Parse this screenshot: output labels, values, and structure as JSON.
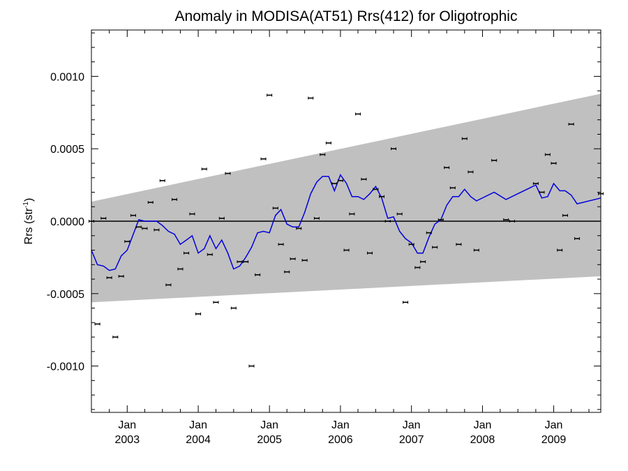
{
  "chart_data": {
    "type": "line",
    "title": "Anomaly in MODISA(AT51) Rrs(412) for Oligotrophic",
    "ylabel": "Rrs (str",
    "ylabel_superscript": "-1",
    "ylabel_suffix": ")",
    "xlabel": "",
    "xlim": [
      "2002-07-01",
      "2009-08-31"
    ],
    "ylim": [
      -0.00132,
      0.00132
    ],
    "y_ticks": [
      {
        "value": 0.001,
        "label": "0.0010"
      },
      {
        "value": 0.0005,
        "label": "0.0005"
      },
      {
        "value": 0.0,
        "label": "0.0000"
      },
      {
        "value": -0.0005,
        "label": "-0.0005"
      },
      {
        "value": -0.001,
        "label": "-0.0010"
      }
    ],
    "x_ticks": [
      {
        "date": "2003-01-01",
        "line1": "Jan",
        "line2": "2003"
      },
      {
        "date": "2004-01-01",
        "line1": "Jan",
        "line2": "2004"
      },
      {
        "date": "2005-01-01",
        "line1": "Jan",
        "line2": "2005"
      },
      {
        "date": "2006-01-01",
        "line1": "Jan",
        "line2": "2006"
      },
      {
        "date": "2007-01-01",
        "line1": "Jan",
        "line2": "2007"
      },
      {
        "date": "2008-01-01",
        "line1": "Jan",
        "line2": "2008"
      },
      {
        "date": "2009-01-01",
        "line1": "Jan",
        "line2": "2009"
      }
    ],
    "grid": false,
    "legend": "none",
    "colors": {
      "band": "#c0c0c0",
      "trend": "#0000dd",
      "points": "#000000",
      "zero_line": "#000000"
    },
    "band": {
      "upper": [
        [
          "2002-07-01",
          0.000135
        ],
        [
          "2009-08-31",
          0.00088
        ]
      ],
      "lower": [
        [
          "2002-07-01",
          -0.00056
        ],
        [
          "2009-08-31",
          -0.00038
        ]
      ]
    },
    "zero_line": 0.0,
    "series": [
      {
        "kind": "points",
        "points": [
          [
            "2002-07-01",
            0.0
          ],
          [
            "2002-08-01",
            -0.00071
          ],
          [
            "2002-09-01",
            2e-05
          ],
          [
            "2002-10-01",
            -0.00039
          ],
          [
            "2002-11-01",
            -0.0008
          ],
          [
            "2002-12-01",
            -0.00038
          ],
          [
            "2003-01-01",
            -0.00014
          ],
          [
            "2003-02-01",
            4e-05
          ],
          [
            "2003-03-01",
            -4e-05
          ],
          [
            "2003-04-01",
            -5e-05
          ],
          [
            "2003-05-01",
            0.00013
          ],
          [
            "2003-06-01",
            -6e-05
          ],
          [
            "2003-07-01",
            0.00028
          ],
          [
            "2003-08-01",
            -0.00044
          ],
          [
            "2003-09-01",
            0.00015
          ],
          [
            "2003-10-01",
            -0.00033
          ],
          [
            "2003-11-01",
            -0.00022
          ],
          [
            "2003-12-01",
            5e-05
          ],
          [
            "2004-01-01",
            -0.00064
          ],
          [
            "2004-02-01",
            0.00036
          ],
          [
            "2004-03-01",
            -0.00023
          ],
          [
            "2004-04-01",
            -0.00056
          ],
          [
            "2004-05-01",
            2e-05
          ],
          [
            "2004-06-01",
            0.00033
          ],
          [
            "2004-07-01",
            -0.0006
          ],
          [
            "2004-08-01",
            -0.00028
          ],
          [
            "2004-09-01",
            -0.00028
          ],
          [
            "2004-10-01",
            -0.001
          ],
          [
            "2004-11-01",
            -0.00037
          ],
          [
            "2004-12-01",
            0.00043
          ],
          [
            "2005-01-01",
            0.00087
          ],
          [
            "2005-02-01",
            9e-05
          ],
          [
            "2005-03-01",
            -0.00016
          ],
          [
            "2005-04-01",
            -0.00035
          ],
          [
            "2005-05-01",
            -0.00026
          ],
          [
            "2005-06-01",
            -5e-05
          ],
          [
            "2005-07-01",
            -0.00027
          ],
          [
            "2005-08-01",
            0.00085
          ],
          [
            "2005-09-01",
            2e-05
          ],
          [
            "2005-10-01",
            0.00046
          ],
          [
            "2005-11-01",
            0.00054
          ],
          [
            "2005-12-01",
            0.00026
          ],
          [
            "2006-01-01",
            0.00028
          ],
          [
            "2006-02-01",
            -0.0002
          ],
          [
            "2006-03-01",
            5e-05
          ],
          [
            "2006-04-01",
            0.00074
          ],
          [
            "2006-05-01",
            0.00029
          ],
          [
            "2006-06-01",
            -0.00022
          ],
          [
            "2006-07-01",
            0.00022
          ],
          [
            "2006-08-01",
            0.00017
          ],
          [
            "2006-09-01",
            0.0
          ],
          [
            "2006-10-01",
            0.0005
          ],
          [
            "2006-11-01",
            5e-05
          ],
          [
            "2006-12-01",
            -0.00056
          ],
          [
            "2007-01-01",
            -0.00016
          ],
          [
            "2007-02-01",
            -0.00032
          ],
          [
            "2007-03-01",
            -0.00028
          ],
          [
            "2007-04-01",
            -8e-05
          ],
          [
            "2007-05-01",
            -0.00018
          ],
          [
            "2007-06-01",
            1e-05
          ],
          [
            "2007-07-01",
            0.00037
          ],
          [
            "2007-08-01",
            0.00023
          ],
          [
            "2007-09-01",
            -0.00016
          ],
          [
            "2007-10-01",
            0.00057
          ],
          [
            "2007-11-01",
            0.00034
          ],
          [
            "2007-12-01",
            -0.0002
          ],
          [
            "2008-03-01",
            0.00042
          ],
          [
            "2008-05-01",
            1e-05
          ],
          [
            "2008-06-01",
            0.0
          ],
          [
            "2008-10-01",
            0.00026
          ],
          [
            "2008-11-01",
            0.0002
          ],
          [
            "2008-12-01",
            0.00046
          ],
          [
            "2009-01-01",
            0.0004
          ],
          [
            "2009-02-01",
            -0.0002
          ],
          [
            "2009-03-01",
            4e-05
          ],
          [
            "2009-04-01",
            0.00067
          ],
          [
            "2009-05-01",
            -0.00012
          ],
          [
            "2009-08-31",
            0.00019
          ]
        ]
      },
      {
        "kind": "line",
        "points": [
          [
            "2002-07-01",
            -0.0002
          ],
          [
            "2002-08-01",
            -0.0003
          ],
          [
            "2002-09-01",
            -0.00031
          ],
          [
            "2002-10-01",
            -0.00034
          ],
          [
            "2002-11-01",
            -0.00033
          ],
          [
            "2002-12-01",
            -0.00024
          ],
          [
            "2003-01-01",
            -0.0002
          ],
          [
            "2003-02-01",
            -9e-05
          ],
          [
            "2003-03-01",
            1e-05
          ],
          [
            "2003-04-01",
            0.0
          ],
          [
            "2003-05-01",
            0.0
          ],
          [
            "2003-06-01",
            0.0
          ],
          [
            "2003-07-01",
            -3e-05
          ],
          [
            "2003-08-01",
            -7e-05
          ],
          [
            "2003-09-01",
            -9e-05
          ],
          [
            "2003-10-01",
            -0.00016
          ],
          [
            "2003-11-01",
            -0.00013
          ],
          [
            "2003-12-01",
            -0.0001
          ],
          [
            "2004-01-01",
            -0.00022
          ],
          [
            "2004-02-01",
            -0.00019
          ],
          [
            "2004-03-01",
            -0.0001
          ],
          [
            "2004-04-01",
            -0.00019
          ],
          [
            "2004-05-01",
            -0.00013
          ],
          [
            "2004-06-01",
            -0.00022
          ],
          [
            "2004-07-01",
            -0.00033
          ],
          [
            "2004-08-01",
            -0.00031
          ],
          [
            "2004-09-01",
            -0.00025
          ],
          [
            "2004-10-01",
            -0.00018
          ],
          [
            "2004-11-01",
            -8e-05
          ],
          [
            "2004-12-01",
            -7e-05
          ],
          [
            "2005-01-01",
            -8e-05
          ],
          [
            "2005-02-01",
            4e-05
          ],
          [
            "2005-03-01",
            8e-05
          ],
          [
            "2005-04-01",
            -2e-05
          ],
          [
            "2005-05-01",
            -4e-05
          ],
          [
            "2005-06-01",
            -4e-05
          ],
          [
            "2005-07-01",
            6e-05
          ],
          [
            "2005-08-01",
            0.00019
          ],
          [
            "2005-09-01",
            0.00027
          ],
          [
            "2005-10-01",
            0.00031
          ],
          [
            "2005-11-01",
            0.00031
          ],
          [
            "2005-12-01",
            0.00021
          ],
          [
            "2006-01-01",
            0.00032
          ],
          [
            "2006-02-01",
            0.00026
          ],
          [
            "2006-03-01",
            0.00017
          ],
          [
            "2006-04-01",
            0.00017
          ],
          [
            "2006-05-01",
            0.00015
          ],
          [
            "2006-06-01",
            0.00019
          ],
          [
            "2006-07-01",
            0.00024
          ],
          [
            "2006-08-01",
            0.00016
          ],
          [
            "2006-09-01",
            2e-05
          ],
          [
            "2006-10-01",
            3e-05
          ],
          [
            "2006-11-01",
            -7e-05
          ],
          [
            "2006-12-01",
            -0.00012
          ],
          [
            "2007-01-01",
            -0.00015
          ],
          [
            "2007-02-01",
            -0.00022
          ],
          [
            "2007-03-01",
            -0.00022
          ],
          [
            "2007-04-01",
            -0.00011
          ],
          [
            "2007-05-01",
            -2e-05
          ],
          [
            "2007-06-01",
            1e-05
          ],
          [
            "2007-07-01",
            0.00011
          ],
          [
            "2007-08-01",
            0.00017
          ],
          [
            "2007-09-01",
            0.00017
          ],
          [
            "2007-10-01",
            0.00022
          ],
          [
            "2007-11-01",
            0.00017
          ],
          [
            "2007-12-01",
            0.00014
          ],
          [
            "2008-03-01",
            0.0002
          ],
          [
            "2008-05-01",
            0.00015
          ],
          [
            "2008-07-01",
            0.00019
          ],
          [
            "2008-10-01",
            0.00025
          ],
          [
            "2008-11-01",
            0.00016
          ],
          [
            "2008-12-01",
            0.00017
          ],
          [
            "2009-01-01",
            0.00026
          ],
          [
            "2009-02-01",
            0.00021
          ],
          [
            "2009-03-01",
            0.00021
          ],
          [
            "2009-04-01",
            0.00018
          ],
          [
            "2009-05-01",
            0.00012
          ],
          [
            "2009-08-31",
            0.00016
          ]
        ]
      }
    ]
  }
}
